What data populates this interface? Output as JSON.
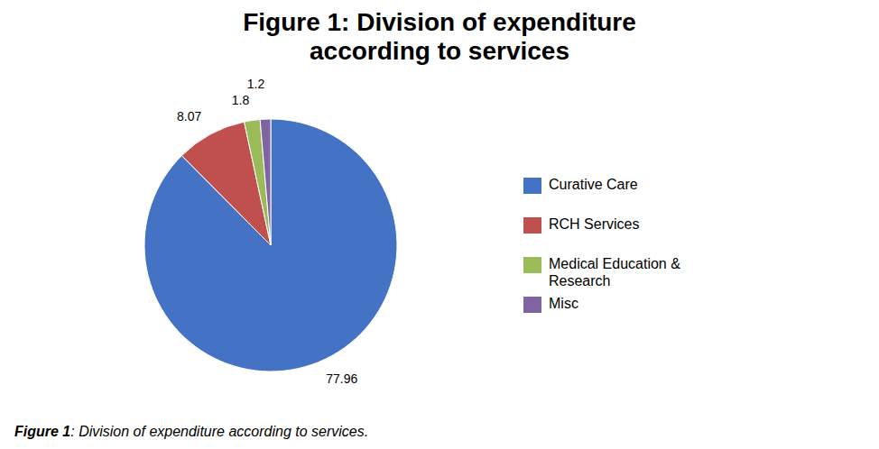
{
  "chart_data": {
    "type": "pie",
    "title": "Figure 1: Division of expenditure\naccording to services",
    "categories": [
      "Curative Care",
      "RCH Services",
      "Medical Education &\nResearch",
      "Misc"
    ],
    "values": [
      77.96,
      8.07,
      1.8,
      1.2
    ],
    "colors": [
      "#4472C4",
      "#C0504D",
      "#9BBB59",
      "#8064A2"
    ],
    "data_labels": true,
    "legend": "right",
    "annotations": [
      "Figure 1",
      ": Division of expenditure according to services."
    ]
  }
}
